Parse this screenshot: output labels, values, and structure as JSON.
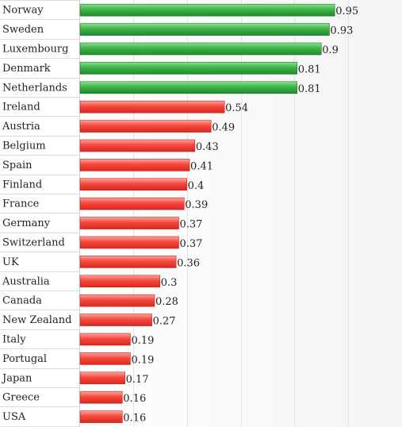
{
  "chart_data": {
    "type": "bar",
    "orientation": "horizontal",
    "categories": [
      "Norway",
      "Sweden",
      "Luxembourg",
      "Denmark",
      "Netherlands",
      "Ireland",
      "Austria",
      "Belgium",
      "Spain",
      "Finland",
      "France",
      "Germany",
      "Switzerland",
      "UK",
      "Australia",
      "Canada",
      "New Zealand",
      "Italy",
      "Portugal",
      "Japan",
      "Greece",
      "USA"
    ],
    "values": [
      0.95,
      0.93,
      0.9,
      0.81,
      0.81,
      0.54,
      0.49,
      0.43,
      0.41,
      0.4,
      0.39,
      0.37,
      0.37,
      0.36,
      0.3,
      0.28,
      0.27,
      0.19,
      0.19,
      0.17,
      0.16,
      0.16
    ],
    "value_labels": [
      "0.95",
      "0.93",
      "0.9",
      "0.81",
      "0.81",
      "0.54",
      "0.49",
      "0.43",
      "0.41",
      "0.4",
      "0.39",
      "0.37",
      "0.37",
      "0.36",
      "0.3",
      "0.28",
      "0.27",
      "0.19",
      "0.19",
      "0.17",
      "0.16",
      "0.16"
    ],
    "highlight_count": 5,
    "xlim": [
      0,
      1.2
    ],
    "grid": true,
    "legend": "none",
    "colors": {
      "highlight": "#2e9e3a",
      "normal": "#f0433a",
      "grid": "#e4e4e4",
      "text": "#222222"
    }
  }
}
